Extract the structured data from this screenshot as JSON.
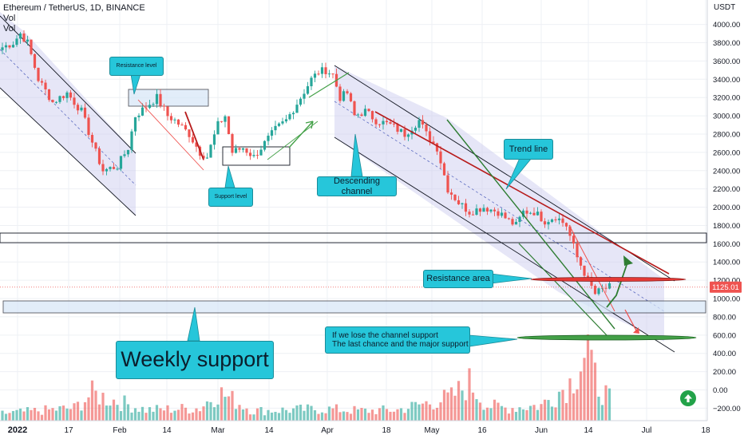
{
  "header": {
    "symbol": "Ethereum / TetherUS, 1D, BINANCE",
    "indicator_1": "Vol",
    "indicator_2": "Vol"
  },
  "price_axis": {
    "currency": "USDT",
    "current_price_label": "1125.01"
  },
  "annotations": {
    "resistance_level": "Resistance level",
    "support_level": "Support level",
    "descending_channel": "Descending channel",
    "trend_line": "Trend line",
    "resistance_area": "Resistance area",
    "channel_note_line1": "If we lose the channel support",
    "channel_note_line2": "The last chance and the major support",
    "weekly_support": "Weekly support"
  },
  "colors": {
    "up": "#26a69a",
    "down": "#ef5350",
    "callout": "#26c6da",
    "channel_fill": "#c8c8ee",
    "weekly_zone": "#d6e6f7",
    "trend_line": "#b71c1c",
    "arrow_green": "#2e7d32"
  },
  "chart_data": {
    "type": "candlestick",
    "title": "Ethereum / TetherUS, 1D, BINANCE",
    "y_unit": "USDT",
    "y_ticks": [
      -200,
      0,
      200,
      400,
      600,
      800,
      1000,
      1200,
      1400,
      1600,
      1800,
      2000,
      2200,
      2400,
      2600,
      2800,
      3000,
      3200,
      3400,
      3600,
      3800,
      4000
    ],
    "x_ticks": [
      "2022",
      "17",
      "Feb",
      "14",
      "Mar",
      "14",
      "Apr",
      "18",
      "May",
      "16",
      "Jun",
      "14",
      "Jul",
      "18"
    ],
    "price_anchors": [
      [
        0,
        3750
      ],
      [
        3,
        3800
      ],
      [
        5,
        3900
      ],
      [
        7,
        3800
      ],
      [
        10,
        3400
      ],
      [
        14,
        3150
      ],
      [
        18,
        3250
      ],
      [
        22,
        3050
      ],
      [
        26,
        2600
      ],
      [
        28,
        2400
      ],
      [
        32,
        2450
      ],
      [
        35,
        2650
      ],
      [
        37,
        3000
      ],
      [
        40,
        3100
      ],
      [
        43,
        3200
      ],
      [
        46,
        3000
      ],
      [
        48,
        2950
      ],
      [
        52,
        2800
      ],
      [
        55,
        2600
      ],
      [
        57,
        2550
      ],
      [
        60,
        2900
      ],
      [
        62,
        3000
      ],
      [
        64,
        2600
      ],
      [
        67,
        2650
      ],
      [
        70,
        2550
      ],
      [
        73,
        2700
      ],
      [
        76,
        2850
      ],
      [
        79,
        2950
      ],
      [
        83,
        3200
      ],
      [
        86,
        3400
      ],
      [
        88,
        3480
      ],
      [
        90,
        3500
      ],
      [
        92,
        3450
      ],
      [
        94,
        3200
      ],
      [
        96,
        3250
      ],
      [
        98,
        3000
      ],
      [
        101,
        3050
      ],
      [
        104,
        2950
      ],
      [
        108,
        2900
      ],
      [
        112,
        2800
      ],
      [
        116,
        2950
      ],
      [
        118,
        2800
      ],
      [
        121,
        2650
      ],
      [
        124,
        2200
      ],
      [
        127,
        2050
      ],
      [
        130,
        1950
      ],
      [
        134,
        2000
      ],
      [
        138,
        1950
      ],
      [
        141,
        1850
      ],
      [
        143,
        1800
      ],
      [
        145,
        1950
      ],
      [
        148,
        1950
      ],
      [
        151,
        1850
      ],
      [
        154,
        1900
      ],
      [
        157,
        1800
      ],
      [
        160,
        1450
      ],
      [
        163,
        1200
      ],
      [
        165,
        1050
      ],
      [
        167,
        1100
      ],
      [
        169,
        1125
      ]
    ],
    "volume_profile": [
      [
        0,
        80
      ],
      [
        20,
        140
      ],
      [
        25,
        300
      ],
      [
        40,
        120
      ],
      [
        55,
        140
      ],
      [
        60,
        320
      ],
      [
        70,
        110
      ],
      [
        90,
        130
      ],
      [
        100,
        110
      ],
      [
        110,
        120
      ],
      [
        125,
        260
      ],
      [
        130,
        420
      ],
      [
        135,
        170
      ],
      [
        140,
        140
      ],
      [
        150,
        170
      ],
      [
        158,
        420
      ],
      [
        161,
        680
      ],
      [
        163,
        820
      ],
      [
        164,
        540
      ],
      [
        166,
        400
      ],
      [
        169,
        240
      ]
    ],
    "last_price": 1125.01
  }
}
